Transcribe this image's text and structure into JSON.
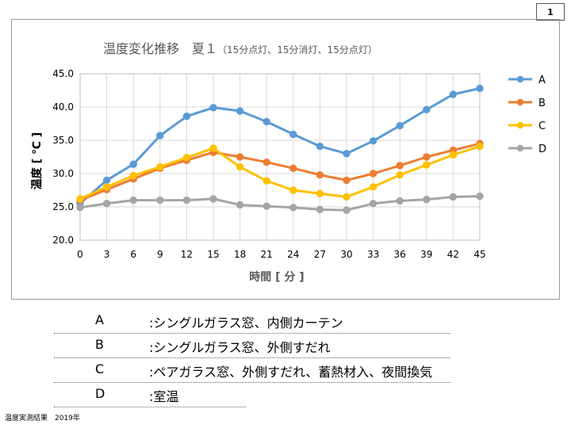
{
  "page_number": "1",
  "chart_data": {
    "type": "line",
    "title_main": "温度変化推移　夏１",
    "title_sub": "（15分点灯、15分消灯、15分点灯）",
    "xlabel": "時間 [ 分 ]",
    "ylabel": "温度 [ ℃ ]",
    "x": [
      0,
      3,
      6,
      9,
      12,
      15,
      18,
      21,
      24,
      27,
      30,
      33,
      36,
      39,
      42,
      45
    ],
    "x_tick_labels": [
      "0",
      "3",
      "6",
      "9",
      "12",
      "15",
      "18",
      "21",
      "24",
      "27",
      "30",
      "33",
      "36",
      "39",
      "42",
      "45"
    ],
    "ylim": [
      20,
      45
    ],
    "y_ticks": [
      20,
      25,
      30,
      35,
      40,
      45
    ],
    "y_tick_labels": [
      "20.0",
      "25.0",
      "30.0",
      "35.0",
      "40.0",
      "45.0"
    ],
    "grid": true,
    "legend_position": "right",
    "series": [
      {
        "name": "A",
        "color": "#5b9bd5",
        "values": [
          25.5,
          29.0,
          31.4,
          35.7,
          38.6,
          39.9,
          39.4,
          37.8,
          35.9,
          34.1,
          33.0,
          34.9,
          37.2,
          39.6,
          41.9,
          42.8
        ]
      },
      {
        "name": "B",
        "color": "#ed7d31",
        "values": [
          26.0,
          27.6,
          29.2,
          30.8,
          32.0,
          33.2,
          32.5,
          31.7,
          30.8,
          29.8,
          29.0,
          30.0,
          31.2,
          32.5,
          33.5,
          34.5
        ]
      },
      {
        "name": "C",
        "color": "#ffc000",
        "values": [
          26.2,
          28.0,
          29.7,
          31.0,
          32.4,
          33.8,
          31.0,
          28.9,
          27.5,
          27.0,
          26.5,
          28.0,
          29.8,
          31.3,
          32.8,
          34.1
        ]
      },
      {
        "name": "D",
        "color": "#a5a5a5",
        "values": [
          24.9,
          25.5,
          26.0,
          26.0,
          26.0,
          26.2,
          25.3,
          25.1,
          24.9,
          24.6,
          24.5,
          25.5,
          25.9,
          26.1,
          26.5,
          26.6
        ]
      }
    ]
  },
  "legend_table": [
    {
      "key": "A",
      "desc": ":シングルガラス窓、内側カーテン"
    },
    {
      "key": "B",
      "desc": ":シングルガラス窓、外側すだれ"
    },
    {
      "key": "C",
      "desc": ":ペアガラス窓、外側すだれ、蓄熱材入、夜間換気"
    },
    {
      "key": "D",
      "desc": ":室温"
    }
  ],
  "footer": "温度実測結果　2019年"
}
